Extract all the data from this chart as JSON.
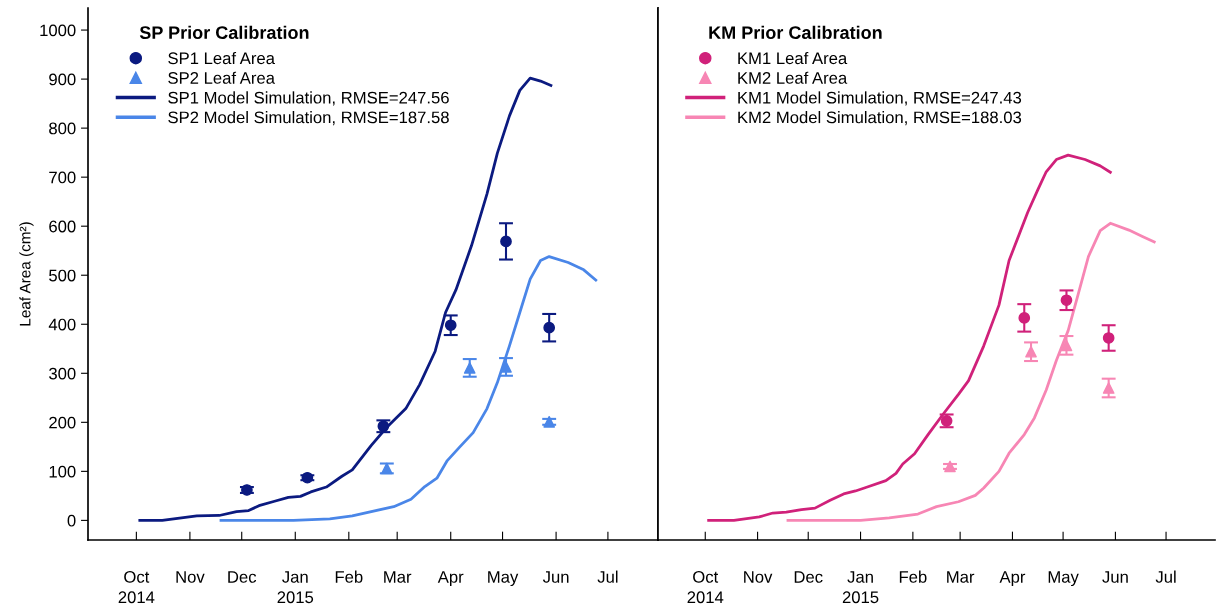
{
  "chart_data": [
    {
      "type": "line",
      "title": "SP Prior Calibration",
      "ylabel": "Leaf Area (cm²)",
      "legend": "top left",
      "grid": false,
      "xlim": [
        "2014-09-03",
        "2015-07-30"
      ],
      "xticks": [
        {
          "value": "2014-10-01",
          "label": "Oct\n2014"
        },
        {
          "value": "2014-11-01",
          "label": "Nov"
        },
        {
          "value": "2014-12-01",
          "label": "Dec"
        },
        {
          "value": "2015-01-01",
          "label": "Jan\n2015"
        },
        {
          "value": "2015-02-01",
          "label": "Feb"
        },
        {
          "value": "2015-03-01",
          "label": "Mar"
        },
        {
          "value": "2015-04-01",
          "label": "Apr"
        },
        {
          "value": "2015-05-01",
          "label": "May"
        },
        {
          "value": "2015-06-01",
          "label": "Jun"
        },
        {
          "value": "2015-07-01",
          "label": "Jul"
        }
      ],
      "ylim": [
        -40,
        1045
      ],
      "yticks": [
        0,
        100,
        200,
        300,
        400,
        500,
        600,
        700,
        800,
        900,
        1000
      ],
      "series": [
        {
          "name": "SP1 Leaf Area",
          "type": "scatter",
          "marker": "circle",
          "color": "#0b1a80",
          "x": [
            "2014-12-04",
            "2015-01-08",
            "2015-02-21",
            "2015-04-01",
            "2015-05-03",
            "2015-05-28"
          ],
          "values": [
            62,
            87,
            192,
            398,
            569,
            393
          ],
          "errors": [
            6,
            5,
            12,
            20,
            37,
            28
          ]
        },
        {
          "name": "SP2 Leaf Area",
          "type": "scatter",
          "marker": "triangle",
          "color": "#4a86e8",
          "x": [
            "2015-02-23",
            "2015-04-12",
            "2015-05-03",
            "2015-05-28"
          ],
          "values": [
            106,
            311,
            313,
            201
          ],
          "errors": [
            10,
            18,
            18,
            6
          ]
        },
        {
          "name": "SP1 Model Simulation, RMSE=247.56",
          "color": "#0b1a80",
          "x": [
            "2014-10-03",
            "2014-10-16",
            "2014-11-05",
            "2014-11-18",
            "2014-11-28",
            "2014-12-05",
            "2014-12-11",
            "2014-12-20",
            "2014-12-28",
            "2015-01-04",
            "2015-01-10",
            "2015-01-19",
            "2015-01-28",
            "2015-02-03",
            "2015-02-14",
            "2015-02-23",
            "2015-03-06",
            "2015-03-14",
            "2015-03-23",
            "2015-03-29",
            "2015-04-04",
            "2015-04-13",
            "2015-04-22",
            "2015-04-28",
            "2015-05-05",
            "2015-05-11",
            "2015-05-17",
            "2015-05-23",
            "2015-05-29"
          ],
          "values": [
            0,
            0,
            9,
            10,
            18,
            20,
            30,
            39,
            47,
            49,
            58,
            68,
            90,
            103,
            153,
            190,
            228,
            277,
            345,
            424,
            470,
            560,
            666,
            749,
            825,
            877,
            902,
            896,
            887
          ]
        },
        {
          "name": "SP2 Model Simulation, RMSE=187.58",
          "color": "#4a86e8",
          "x": [
            "2014-11-19",
            "2014-12-31",
            "2015-01-21",
            "2015-02-03",
            "2015-02-14",
            "2015-02-27",
            "2015-03-09",
            "2015-03-17",
            "2015-03-24",
            "2015-03-30",
            "2015-04-06",
            "2015-04-14",
            "2015-04-22",
            "2015-04-28",
            "2015-05-05",
            "2015-05-11",
            "2015-05-17",
            "2015-05-23",
            "2015-05-28",
            "2015-06-08",
            "2015-06-17",
            "2015-06-24"
          ],
          "values": [
            0,
            0,
            3,
            9,
            18,
            28,
            43,
            69,
            86,
            122,
            149,
            179,
            228,
            281,
            356,
            424,
            492,
            530,
            538,
            526,
            511,
            490
          ]
        }
      ]
    },
    {
      "type": "line",
      "title": "KM Prior Calibration",
      "legend": "top left",
      "grid": false,
      "tick_labels": "x",
      "xlim": [
        "2014-09-03",
        "2015-07-30"
      ],
      "xticks": [
        {
          "value": "2014-10-01",
          "label": "Oct\n2014"
        },
        {
          "value": "2014-11-01",
          "label": "Nov"
        },
        {
          "value": "2014-12-01",
          "label": "Dec"
        },
        {
          "value": "2015-01-01",
          "label": "Jan\n2015"
        },
        {
          "value": "2015-02-01",
          "label": "Feb"
        },
        {
          "value": "2015-03-01",
          "label": "Mar"
        },
        {
          "value": "2015-04-01",
          "label": "Apr"
        },
        {
          "value": "2015-05-01",
          "label": "May"
        },
        {
          "value": "2015-06-01",
          "label": "Jun"
        },
        {
          "value": "2015-07-01",
          "label": "Jul"
        }
      ],
      "ylim": [
        -40,
        1045
      ],
      "series": [
        {
          "name": "KM1 Leaf Area",
          "type": "scatter",
          "marker": "circle",
          "color": "#d0217a",
          "x": [
            "2015-02-21",
            "2015-04-08",
            "2015-05-03",
            "2015-05-28"
          ],
          "values": [
            203,
            413,
            449,
            372
          ],
          "errors": [
            13,
            28,
            20,
            26
          ]
        },
        {
          "name": "KM2 Leaf Area",
          "type": "scatter",
          "marker": "triangle",
          "color": "#f786b4",
          "x": [
            "2015-02-23",
            "2015-04-12",
            "2015-05-03",
            "2015-05-28"
          ],
          "values": [
            110,
            344,
            357,
            270
          ],
          "errors": [
            5,
            19,
            19,
            19
          ]
        },
        {
          "name": "KM1 Model Simulation, RMSE=247.43",
          "color": "#d0217a",
          "x": [
            "2014-10-03",
            "2014-10-18",
            "2014-11-02",
            "2014-11-10",
            "2014-11-18",
            "2014-11-27",
            "2014-12-05",
            "2014-12-14",
            "2014-12-22",
            "2014-12-29",
            "2015-01-05",
            "2015-01-16",
            "2015-01-22",
            "2015-01-26",
            "2015-02-02",
            "2015-02-10",
            "2015-02-19",
            "2015-02-28",
            "2015-03-06",
            "2015-03-15",
            "2015-03-24",
            "2015-03-30",
            "2015-04-10",
            "2015-04-16",
            "2015-04-21",
            "2015-04-27",
            "2015-05-04",
            "2015-05-14",
            "2015-05-23",
            "2015-05-29"
          ],
          "values": [
            0,
            0,
            7,
            15,
            17,
            22,
            25,
            41,
            54,
            60,
            68,
            81,
            96,
            115,
            136,
            175,
            217,
            257,
            285,
            356,
            439,
            530,
            628,
            674,
            711,
            736,
            745,
            736,
            723,
            710
          ]
        },
        {
          "name": "KM2 Model Simulation, RMSE=188.03",
          "color": "#f786b4",
          "x": [
            "2014-11-19",
            "2015-01-01",
            "2015-01-18",
            "2015-02-04",
            "2015-02-15",
            "2015-02-28",
            "2015-03-10",
            "2015-03-15",
            "2015-03-24",
            "2015-03-30",
            "2015-04-08",
            "2015-04-14",
            "2015-04-21",
            "2015-04-27",
            "2015-05-04",
            "2015-05-10",
            "2015-05-16",
            "2015-05-23",
            "2015-05-29",
            "2015-06-09",
            "2015-06-17",
            "2015-06-24"
          ],
          "values": [
            0,
            0,
            5,
            13,
            28,
            38,
            51,
            66,
            100,
            137,
            175,
            209,
            266,
            326,
            387,
            462,
            538,
            591,
            606,
            592,
            579,
            568
          ]
        }
      ]
    }
  ]
}
